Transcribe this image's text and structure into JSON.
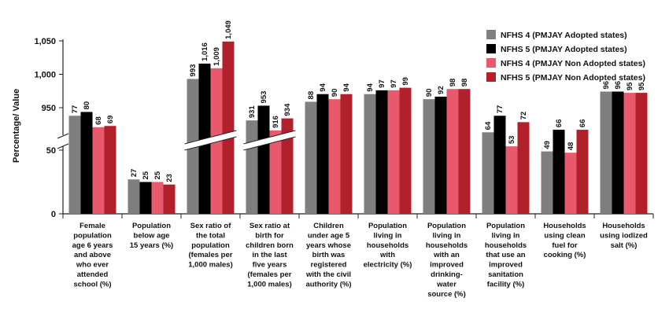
{
  "chart_data": {
    "type": "bar",
    "ylabel": "Percentage/ Value",
    "categories": [
      "Female population age 6 years and above who ever attended school (%)",
      "Population below age 15 years (%)",
      "Sex ratio of the total population (females per 1,000 males)",
      "Sex ratio at birth for children born in the last five years (females per 1,000 males)",
      "Children under age 5 years whose birth was registered with the civil authority (%)",
      "Population living in households with electricity (%)",
      "Population living in households with an improved drinking-water source (%)",
      "Population living in households that use an improved sanitation facility (%)",
      "Households using clean fuel for cooking (%)",
      "Households using iodized salt (%)"
    ],
    "category_lines": [
      [
        "Female",
        "population",
        "age 6 years",
        "and above",
        "who ever",
        "attended",
        "school (%)"
      ],
      [
        "Population",
        "below age",
        "15 years (%)"
      ],
      [
        "Sex ratio of",
        "the total",
        "population",
        "(females per",
        "1,000 males)"
      ],
      [
        "Sex ratio at",
        "birth for",
        "children born",
        "in the last",
        "five years",
        "(females per",
        "1,000 males)"
      ],
      [
        "Children",
        "under age 5",
        "years whose",
        "birth was",
        "registered",
        "with the civil",
        "authority (%)"
      ],
      [
        "Population",
        "living in",
        "households",
        "with",
        "electricity (%)"
      ],
      [
        "Population",
        "living in",
        "households",
        "with an",
        "improved",
        "drinking-",
        "water",
        "source (%)"
      ],
      [
        "Population",
        "living in",
        "households",
        "that use an",
        "improved",
        "sanitation",
        "facility (%)"
      ],
      [
        "Households",
        "using clean",
        "fuel for",
        "cooking (%)"
      ],
      [
        "Households",
        "using iodized",
        "salt (%)"
      ]
    ],
    "series": [
      {
        "name": "NFHS 4 (PMJAY Adopted states)",
        "color": "#7f7f7f",
        "values": [
          77,
          27,
          993,
          931,
          88,
          94,
          90,
          64,
          49,
          96
        ]
      },
      {
        "name": "NFHS 5 (PMJAY Adopted states)",
        "color": "#000000",
        "values": [
          80,
          25,
          1016,
          953,
          94,
          97,
          92,
          77,
          66,
          96
        ]
      },
      {
        "name": "NFHS 4 (PMJAY Non Adopted states)",
        "color": "#e8596b",
        "values": [
          68,
          25,
          1009,
          916,
          90,
          97,
          98,
          53,
          48,
          95
        ]
      },
      {
        "name": "NFHS 5 (PMJAY Non Adopted states)",
        "color": "#b2202b",
        "values": [
          69,
          23,
          1049,
          934,
          94,
          99,
          98,
          72,
          66,
          95
        ]
      }
    ],
    "data_labels": [
      [
        "77",
        "80",
        "68",
        "69"
      ],
      [
        "27",
        "25",
        "25",
        "23"
      ],
      [
        "993",
        "1,016",
        "1,009",
        "1,049"
      ],
      [
        "931",
        "953",
        "916",
        "934"
      ],
      [
        "88",
        "94",
        "90",
        "94"
      ],
      [
        "94",
        "97",
        "97",
        "99"
      ],
      [
        "90",
        "92",
        "98",
        "98"
      ],
      [
        "64",
        "77",
        "53",
        "72"
      ],
      [
        "49",
        "66",
        "48",
        "66"
      ],
      [
        "96",
        "96",
        "95",
        "95"
      ]
    ],
    "y_ticks_lower": [
      {
        "value": 0,
        "label": "0"
      },
      {
        "value": 50,
        "label": "50"
      }
    ],
    "y_ticks_upper": [
      {
        "value": 950,
        "label": "950"
      },
      {
        "value": 1000,
        "label": "1,000"
      },
      {
        "value": 1050,
        "label": "1,050"
      }
    ],
    "axis_break": {
      "lower_range": [
        0,
        100
      ],
      "upper_range": [
        900,
        1050
      ]
    },
    "legend_position": "top-right",
    "grid": false
  }
}
